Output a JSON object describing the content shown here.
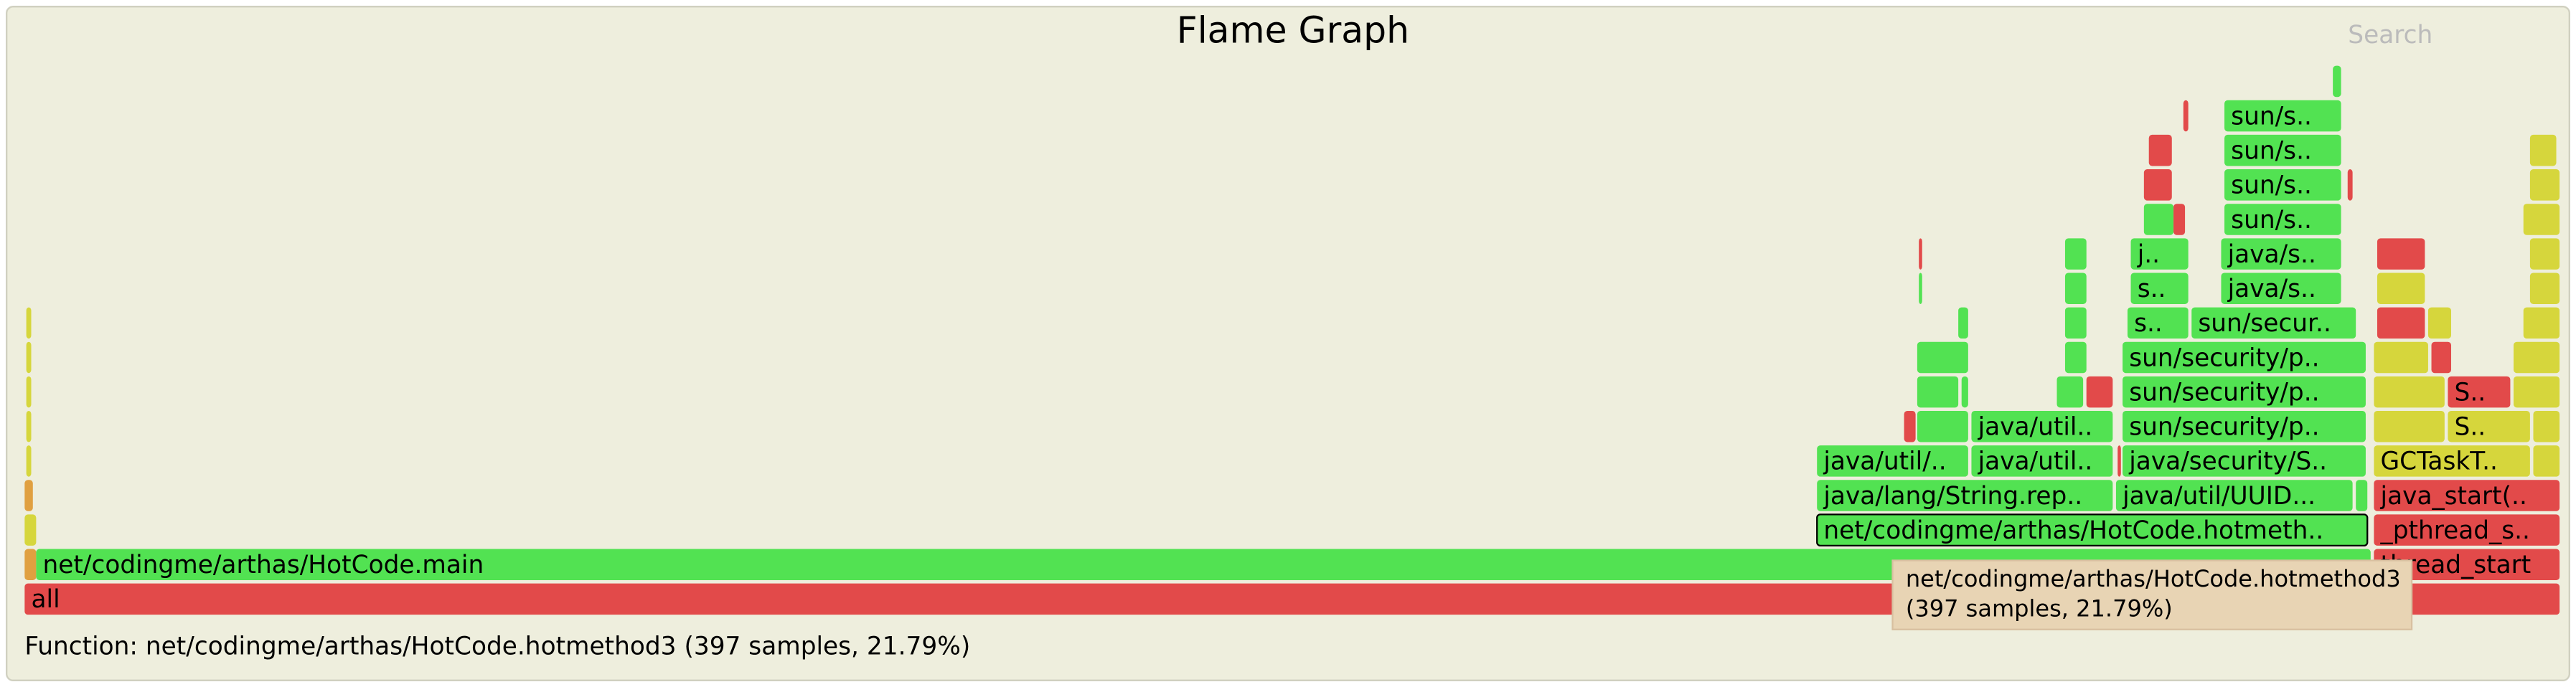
{
  "header": {
    "title": "Flame Graph",
    "search": "Search"
  },
  "frames": [
    "all",
    "net/codingme/arthas/HotCode.main",
    "thread_start",
    "net/codingme/arthas/HotCode.hotmeth..",
    "_pthread_s..",
    "java/lang/String.rep..",
    "java/util/UUID...",
    "java_start(..",
    "java/util/..",
    "java/util..",
    "java/security/S..",
    "GCTaskT..",
    "java/util..",
    "sun/security/p..",
    "S..",
    "sun/security/p..",
    "S..",
    "sun/security/p..",
    "s..",
    "sun/secur..",
    "s..",
    "java/s..",
    "j..",
    "java/s..",
    "sun/s..",
    "sun/s..",
    "sun/s..",
    "sun/s.."
  ],
  "tooltip": {
    "lines": [
      "net/codingme/arthas/HotCode.hotmethod3",
      "(397 samples, 21.79%)"
    ]
  },
  "status": "Function: net/codingme/arthas/HotCode.hotmethod3 (397 samples, 21.79%)"
}
